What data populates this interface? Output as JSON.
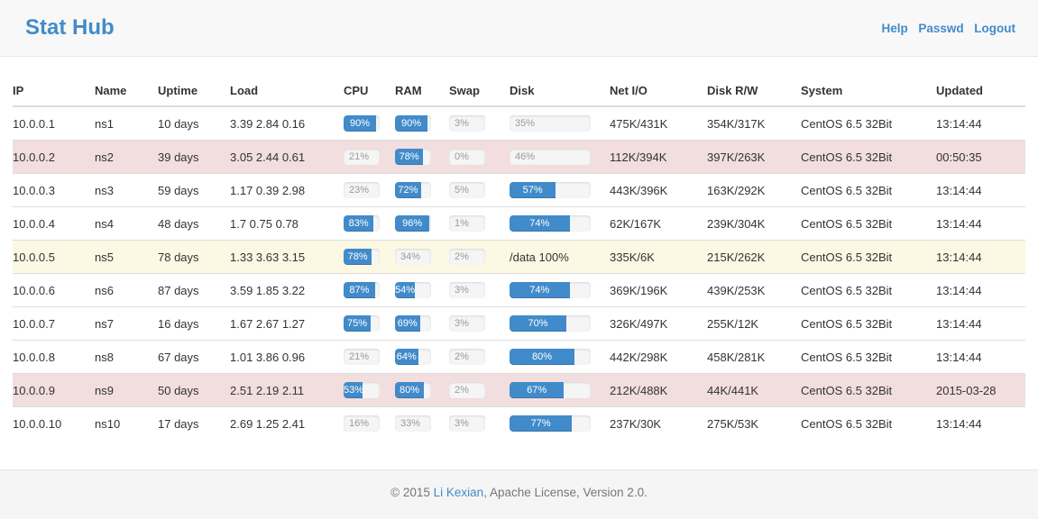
{
  "header": {
    "title": "Stat Hub",
    "links": [
      "Help",
      "Passwd",
      "Logout"
    ]
  },
  "colors": {
    "accent": "#428bca",
    "danger_row": "#f2dede",
    "warning_row": "#fcf8e3"
  },
  "table": {
    "columns": [
      {
        "key": "ip",
        "label": "IP"
      },
      {
        "key": "name",
        "label": "Name"
      },
      {
        "key": "uptime",
        "label": "Uptime"
      },
      {
        "key": "load",
        "label": "Load"
      },
      {
        "key": "cpu",
        "label": "CPU"
      },
      {
        "key": "ram",
        "label": "RAM"
      },
      {
        "key": "swap",
        "label": "Swap"
      },
      {
        "key": "disk",
        "label": "Disk"
      },
      {
        "key": "net_io",
        "label": "Net I/O"
      },
      {
        "key": "disk_rw",
        "label": "Disk R/W"
      },
      {
        "key": "system",
        "label": "System"
      },
      {
        "key": "updated",
        "label": "Updated"
      }
    ],
    "rows": [
      {
        "ip": "10.0.0.1",
        "name": "ns1",
        "uptime": "10 days",
        "load": "3.39 2.84 0.16",
        "cpu": 90,
        "ram": 90,
        "swap": 3,
        "disk": 35,
        "net_io": "475K/431K",
        "disk_rw": "354K/317K",
        "system": "CentOS 6.5 32Bit",
        "updated": "13:14:44",
        "state": "normal"
      },
      {
        "ip": "10.0.0.2",
        "name": "ns2",
        "uptime": "39 days",
        "load": "3.05 2.44 0.61",
        "cpu": 21,
        "ram": 78,
        "swap": 0,
        "disk": 46,
        "net_io": "112K/394K",
        "disk_rw": "397K/263K",
        "system": "CentOS 6.5 32Bit",
        "updated": "00:50:35",
        "state": "danger"
      },
      {
        "ip": "10.0.0.3",
        "name": "ns3",
        "uptime": "59 days",
        "load": "1.17 0.39 2.98",
        "cpu": 23,
        "ram": 72,
        "swap": 5,
        "disk": 57,
        "net_io": "443K/396K",
        "disk_rw": "163K/292K",
        "system": "CentOS 6.5 32Bit",
        "updated": "13:14:44",
        "state": "normal"
      },
      {
        "ip": "10.0.0.4",
        "name": "ns4",
        "uptime": "48 days",
        "load": "1.7 0.75 0.78",
        "cpu": 83,
        "ram": 96,
        "swap": 1,
        "disk": 74,
        "net_io": "62K/167K",
        "disk_rw": "239K/304K",
        "system": "CentOS 6.5 32Bit",
        "updated": "13:14:44",
        "state": "normal"
      },
      {
        "ip": "10.0.0.5",
        "name": "ns5",
        "uptime": "78 days",
        "load": "1.33 3.63 3.15",
        "cpu": 78,
        "ram": 34,
        "swap": 2,
        "disk": "/data 100%",
        "net_io": "335K/6K",
        "disk_rw": "215K/262K",
        "system": "CentOS 6.5 32Bit",
        "updated": "13:14:44",
        "state": "warning"
      },
      {
        "ip": "10.0.0.6",
        "name": "ns6",
        "uptime": "87 days",
        "load": "3.59 1.85 3.22",
        "cpu": 87,
        "ram": 54,
        "swap": 3,
        "disk": 74,
        "net_io": "369K/196K",
        "disk_rw": "439K/253K",
        "system": "CentOS 6.5 32Bit",
        "updated": "13:14:44",
        "state": "normal"
      },
      {
        "ip": "10.0.0.7",
        "name": "ns7",
        "uptime": "16 days",
        "load": "1.67 2.67 1.27",
        "cpu": 75,
        "ram": 69,
        "swap": 3,
        "disk": 70,
        "net_io": "326K/497K",
        "disk_rw": "255K/12K",
        "system": "CentOS 6.5 32Bit",
        "updated": "13:14:44",
        "state": "normal"
      },
      {
        "ip": "10.0.0.8",
        "name": "ns8",
        "uptime": "67 days",
        "load": "1.01 3.86 0.96",
        "cpu": 21,
        "ram": 64,
        "swap": 2,
        "disk": 80,
        "net_io": "442K/298K",
        "disk_rw": "458K/281K",
        "system": "CentOS 6.5 32Bit",
        "updated": "13:14:44",
        "state": "normal"
      },
      {
        "ip": "10.0.0.9",
        "name": "ns9",
        "uptime": "50 days",
        "load": "2.51 2.19 2.11",
        "cpu": 53,
        "ram": 80,
        "swap": 2,
        "disk": 67,
        "net_io": "212K/488K",
        "disk_rw": "44K/441K",
        "system": "CentOS 6.5 32Bit",
        "updated": "2015-03-28",
        "state": "danger"
      },
      {
        "ip": "10.0.0.10",
        "name": "ns10",
        "uptime": "17 days",
        "load": "2.69 1.25 2.41",
        "cpu": 16,
        "ram": 33,
        "swap": 3,
        "disk": 77,
        "net_io": "237K/30K",
        "disk_rw": "275K/53K",
        "system": "CentOS 6.5 32Bit",
        "updated": "13:14:44",
        "state": "normal"
      }
    ]
  },
  "footer": {
    "prefix": "© 2015 ",
    "author": "Li Kexian",
    "suffix": ", Apache License, Version 2.0."
  }
}
